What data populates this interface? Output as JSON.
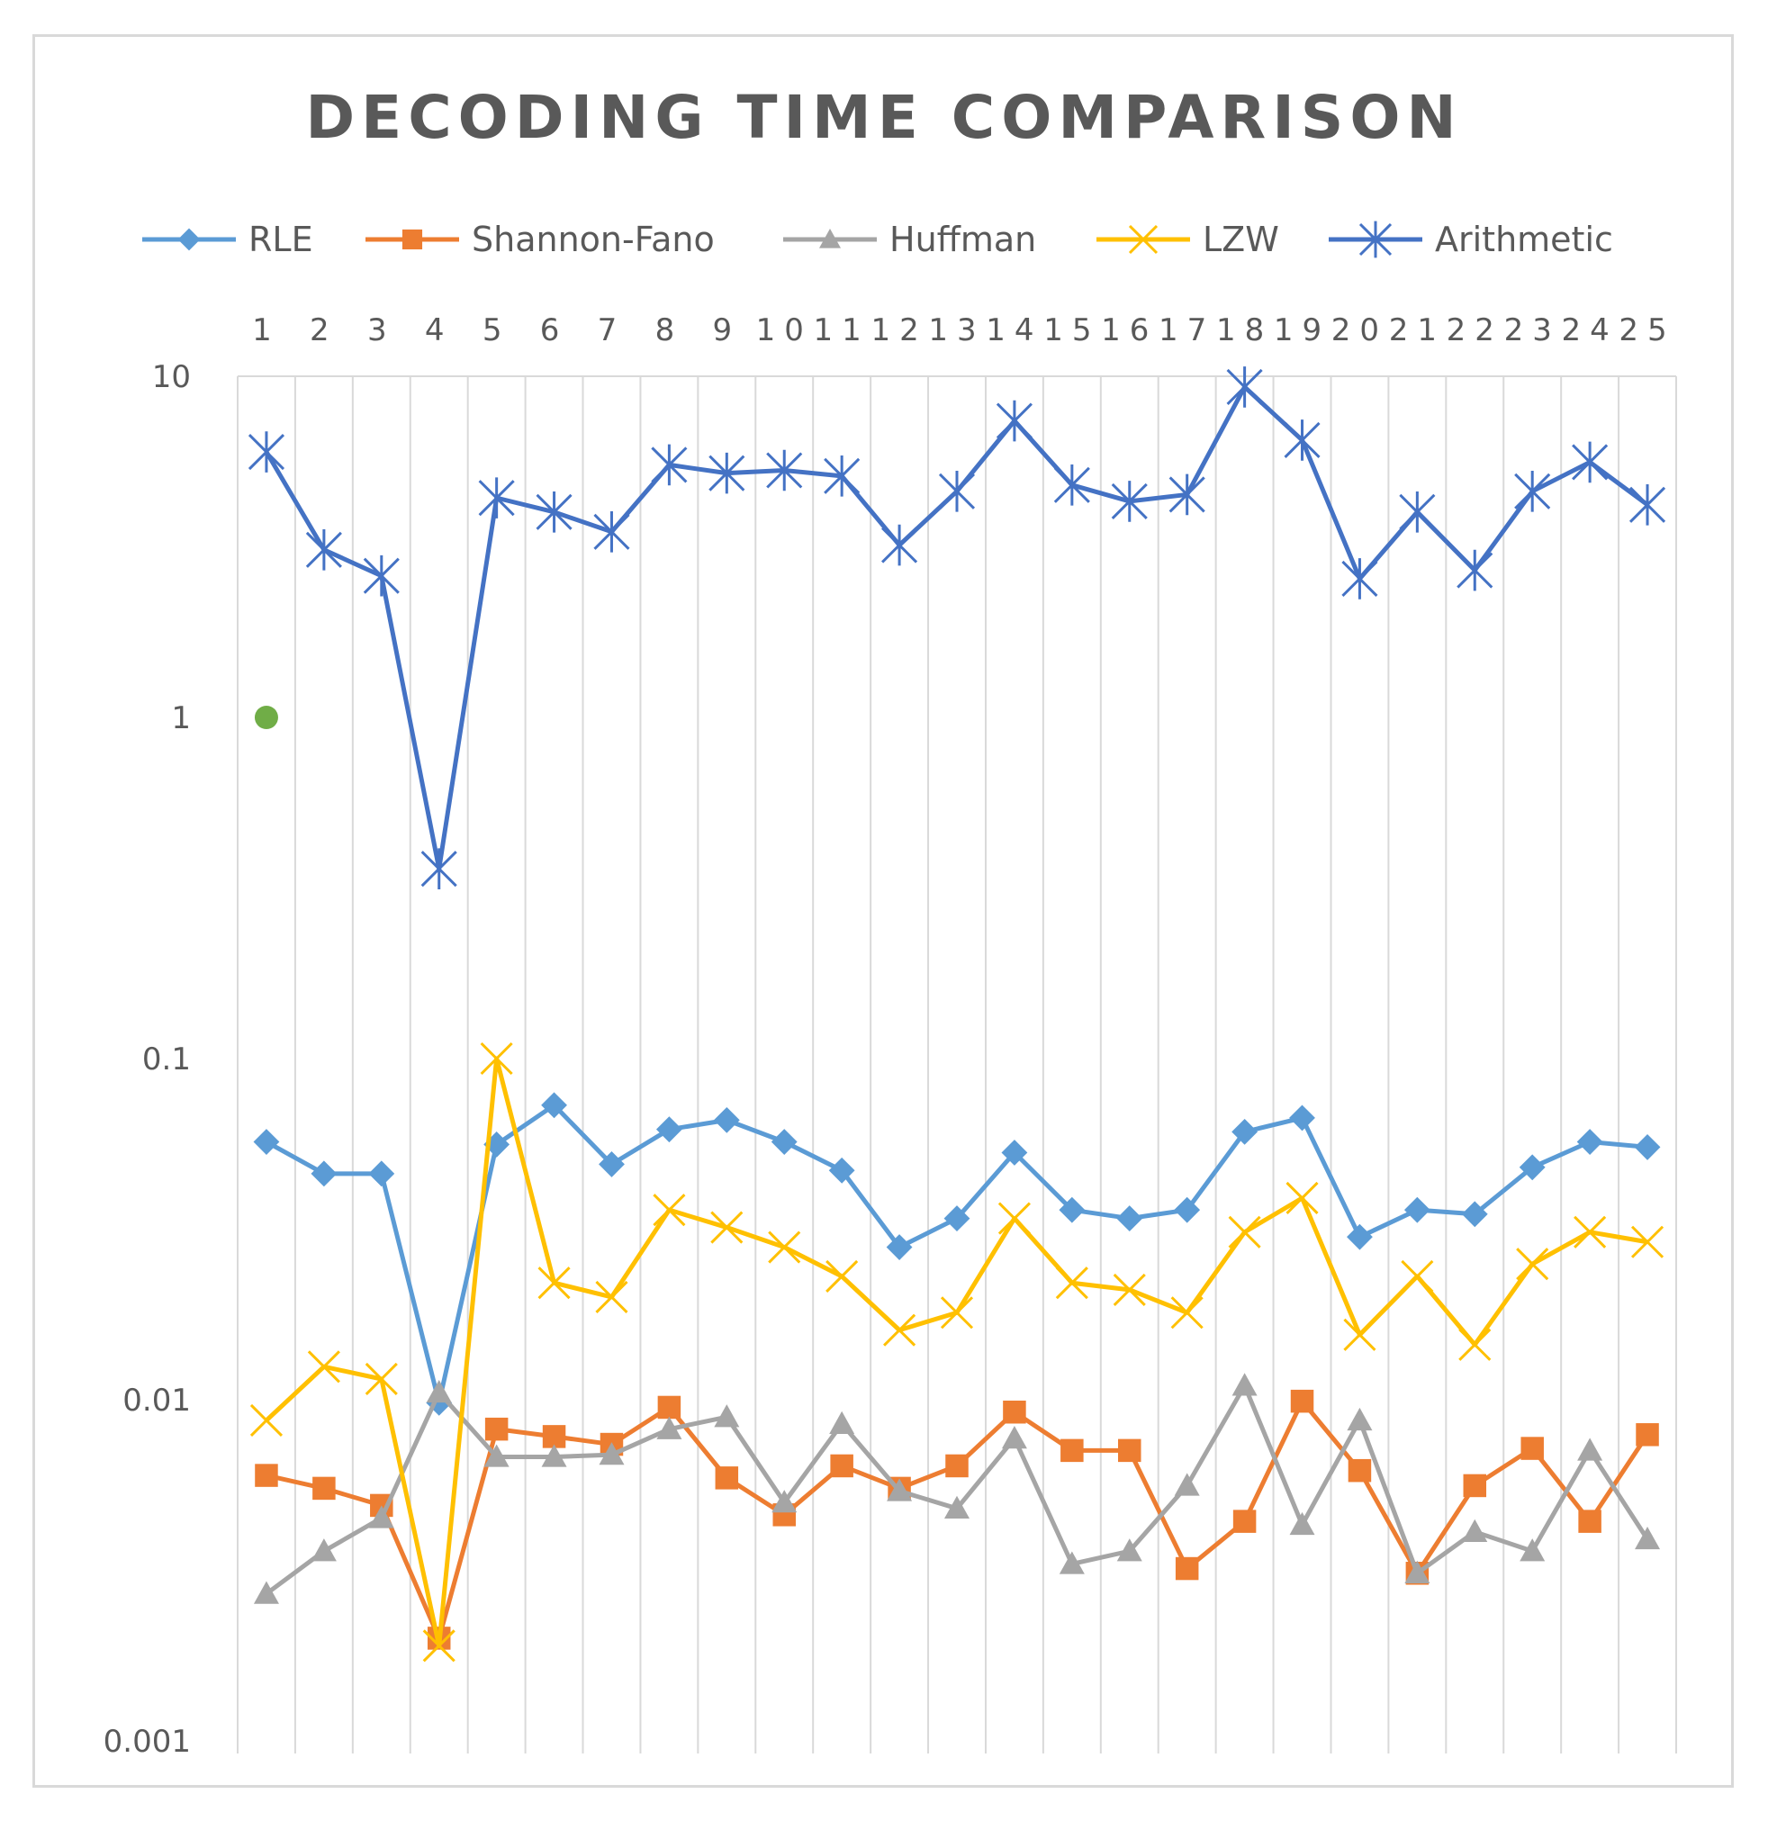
{
  "chart_data": {
    "type": "line",
    "title": "DECODING TIME COMPARISON",
    "xlabel": "",
    "ylabel": "",
    "y_scale": "log",
    "ylim": [
      0.001,
      10
    ],
    "y_ticks": [
      "10",
      "1",
      "0.1",
      "0.01",
      "0.001"
    ],
    "x_axis_position": "top",
    "legend_position": "top",
    "grid": "vertical",
    "categories": [
      "1",
      "2",
      "3",
      "4",
      "5",
      "6",
      "7",
      "8",
      "9",
      "10",
      "11",
      "12",
      "13",
      "14",
      "15",
      "16",
      "17",
      "18",
      "19",
      "20",
      "21",
      "22",
      "23",
      "24",
      "25"
    ],
    "series": [
      {
        "name": "RLE",
        "color": "#5b9bd5",
        "marker": "diamond",
        "values": [
          0.057,
          0.046,
          0.046,
          0.0098,
          0.056,
          0.073,
          0.049,
          0.062,
          0.066,
          0.057,
          0.047,
          0.028,
          0.034,
          0.053,
          0.036,
          0.034,
          0.036,
          0.061,
          0.067,
          0.03,
          0.036,
          0.035,
          0.048,
          0.057,
          0.055
        ]
      },
      {
        "name": "Shannon-Fano",
        "color": "#ed7d31",
        "marker": "square",
        "values": [
          0.006,
          0.0055,
          0.0049,
          0.002,
          0.0082,
          0.0078,
          0.0074,
          0.0095,
          0.0059,
          0.0046,
          0.0064,
          0.0055,
          0.0064,
          0.0092,
          0.0071,
          0.0071,
          0.0032,
          0.0044,
          0.0099,
          0.0062,
          0.0031,
          0.0056,
          0.0072,
          0.0044,
          0.0079
        ]
      },
      {
        "name": "Huffman",
        "color": "#a5a5a5",
        "marker": "triangle",
        "values": [
          0.0027,
          0.0036,
          0.0045,
          0.0105,
          0.0068,
          0.0068,
          0.0069,
          0.0082,
          0.0089,
          0.005,
          0.0085,
          0.0054,
          0.0048,
          0.0077,
          0.0033,
          0.0036,
          0.0056,
          0.011,
          0.0043,
          0.0087,
          0.0031,
          0.0041,
          0.0036,
          0.0071,
          0.0039
        ]
      },
      {
        "name": "LZW",
        "color": "#ffc000",
        "marker": "x",
        "values": [
          0.0087,
          0.0125,
          0.0115,
          0.0019,
          0.1,
          0.022,
          0.02,
          0.036,
          0.032,
          0.028,
          0.023,
          0.016,
          0.018,
          0.034,
          0.022,
          0.021,
          0.018,
          0.031,
          0.039,
          0.0155,
          0.023,
          0.0145,
          0.025,
          0.031,
          0.029
        ]
      },
      {
        "name": "Arithmetic",
        "color": "#4472c4",
        "marker": "star",
        "values": [
          6.0,
          3.1,
          2.6,
          0.36,
          4.4,
          4.0,
          3.5,
          5.5,
          5.2,
          5.3,
          5.1,
          3.2,
          4.6,
          7.4,
          4.8,
          4.3,
          4.5,
          9.3,
          6.5,
          2.55,
          4.0,
          2.7,
          4.6,
          5.6,
          4.2
        ]
      }
    ],
    "extra_points": [
      {
        "name": "marker at category 1",
        "x": 1,
        "y": 1.0,
        "color": "#70ad47"
      }
    ]
  }
}
